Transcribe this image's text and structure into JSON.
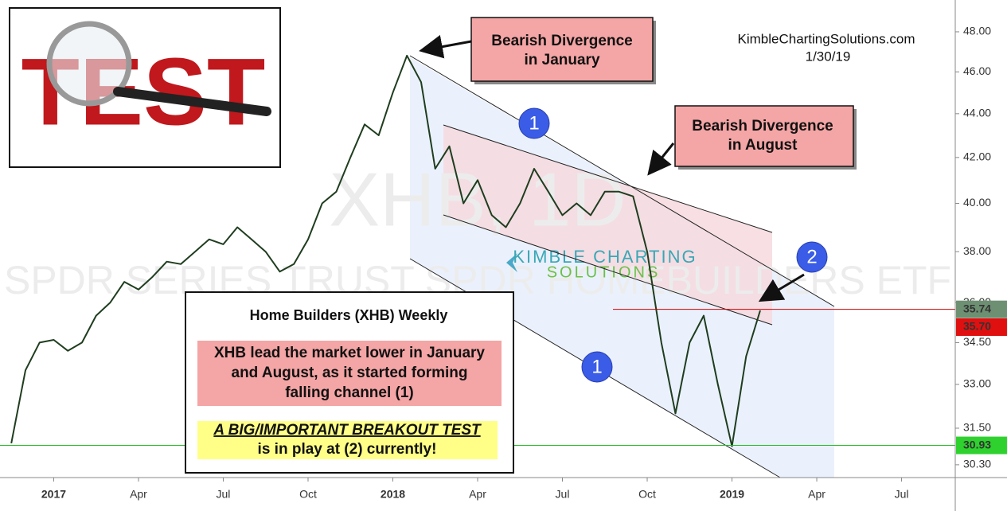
{
  "chart_data": {
    "type": "line",
    "log_scale": true,
    "color": "#1f3d1f",
    "x": [
      -1.5,
      -1,
      -0.5,
      0,
      0.5,
      1,
      1.5,
      2,
      2.5,
      3,
      3.5,
      4,
      4.5,
      5,
      5.5,
      6,
      6.5,
      7,
      7.5,
      8,
      8.5,
      9,
      9.5,
      10,
      10.5,
      11,
      11.5,
      12,
      12.5,
      13,
      13.5,
      14,
      14.5,
      15,
      15.5,
      16,
      16.5,
      17,
      17.5,
      18,
      18.5,
      19,
      19.5,
      20,
      20.5,
      21,
      21.5,
      22,
      22.5,
      23,
      23.5,
      24,
      24.5,
      25
    ],
    "values": [
      31.0,
      33.5,
      34.5,
      34.6,
      34.2,
      34.5,
      35.5,
      36.0,
      36.8,
      36.5,
      37.0,
      37.6,
      37.5,
      38.0,
      38.5,
      38.3,
      39.0,
      38.5,
      38.0,
      37.2,
      37.5,
      38.5,
      40.0,
      40.5,
      42.0,
      43.5,
      43.0,
      45.0,
      46.8,
      45.5,
      41.5,
      42.5,
      40.0,
      41.0,
      39.5,
      39.0,
      40.0,
      41.5,
      40.5,
      39.5,
      40.0,
      39.5,
      40.5,
      40.5,
      40.3,
      38.0,
      34.5,
      32.0,
      34.5,
      35.5,
      33.0,
      30.9,
      34.0,
      35.7
    ],
    "xlim": [
      -1.9,
      31.9
    ],
    "ylim": [
      29.89,
      49.65
    ],
    "xticks": [
      {
        "value": 0,
        "label": "2017"
      },
      {
        "value": 3,
        "label": "Apr"
      },
      {
        "value": 6,
        "label": "Jul"
      },
      {
        "value": 9,
        "label": "Oct"
      },
      {
        "value": 12,
        "label": "2018"
      },
      {
        "value": 15,
        "label": "Apr"
      },
      {
        "value": 18,
        "label": "Jul"
      },
      {
        "value": 21,
        "label": "Oct"
      },
      {
        "value": 24,
        "label": "2019"
      },
      {
        "value": 27,
        "label": "Apr"
      },
      {
        "value": 30,
        "label": "Jul"
      }
    ],
    "yticks": [
      {
        "value": 30.3,
        "label": "30.30"
      },
      {
        "value": 31.5,
        "label": "31.50"
      },
      {
        "value": 33,
        "label": "33.00"
      },
      {
        "value": 34.5,
        "label": "34.50"
      },
      {
        "value": 36,
        "label": "36.00"
      },
      {
        "value": 38,
        "label": "38.00"
      },
      {
        "value": 40,
        "label": "40.00"
      },
      {
        "value": 42,
        "label": "42.00"
      },
      {
        "value": 44,
        "label": "44.00"
      },
      {
        "value": 46,
        "label": "46.00"
      },
      {
        "value": 48,
        "label": "48.00"
      }
    ],
    "resistance": 35.74,
    "resistance_color": "#cc0000",
    "last_price": {
      "value": 35.7,
      "label": "35.70"
    },
    "support": 30.93,
    "support_color": "#22bb22",
    "watermark": "XHB, 1D",
    "watermark_name": "SPDR SERIES TRUST SPDR HOMEBUILDERS ETF",
    "logo": [
      "KIMBLE CHARTING",
      "SOLUTIONS"
    ],
    "image_text": "TEST",
    "source": "KimbleChartingSolutions.com",
    "date": "1/30/19",
    "callout_january": [
      "Bearish Divergence",
      "in January"
    ],
    "callout_august": [
      "Bearish Divergence",
      "in August"
    ],
    "markers": [
      "1",
      "1",
      "2"
    ],
    "info_title": "Home Builders (XHB) Weekly",
    "info_text": [
      "XHB lead the market lower in January",
      "and August, as it started forming",
      "falling channel (1)"
    ],
    "info_highlight": [
      "A BIG/IMPORTANT BREAKOUT TEST",
      "is in play at (2) currently!"
    ]
  }
}
